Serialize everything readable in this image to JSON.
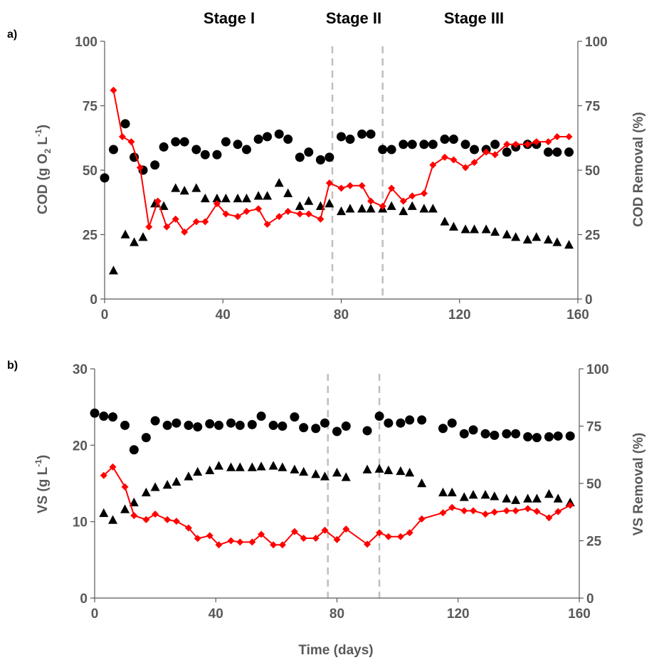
{
  "stages": [
    "Stage I",
    "Stage II",
    "Stage III"
  ],
  "xlabel": "Time (days)",
  "colors": {
    "influent": "#000000",
    "effluent": "#000000",
    "removal": "#ff0000",
    "axis": "#595959",
    "stage_line": "#bfbfbf"
  },
  "chart_data": [
    {
      "panel_label": "a)",
      "type": "scatter",
      "ylabel_prefix": "COD (g O",
      "ylabel_sub": "2",
      "ylabel_mid": " L",
      "ylabel_sup": "-1",
      "ylabel_suffix": ")",
      "y2label": "COD Removal (%)",
      "xlim": [
        0,
        160
      ],
      "ylim": [
        0,
        100
      ],
      "y2lim": [
        0,
        100
      ],
      "x_ticks": [
        "0",
        "40",
        "80",
        "120",
        "160"
      ],
      "y_ticks": [
        "0",
        "25",
        "50",
        "75",
        "100"
      ],
      "y2_ticks": [
        "0",
        "25",
        "50",
        "75",
        "100"
      ],
      "stage_boundaries": [
        77,
        94
      ],
      "series": [
        {
          "marker": "circle",
          "axis": "left",
          "x": [
            0,
            3,
            7,
            10,
            13,
            17,
            20,
            24,
            27,
            31,
            34,
            38,
            41,
            45,
            48,
            52,
            55,
            59,
            62,
            66,
            69,
            73,
            76,
            80,
            83,
            87,
            90,
            94,
            97,
            101,
            104,
            108,
            111,
            115,
            118,
            122,
            125,
            129,
            132,
            136,
            139,
            143,
            146,
            150,
            153,
            157
          ],
          "y": [
            47,
            58,
            68,
            55,
            50,
            52,
            59,
            61,
            61,
            58,
            56,
            56,
            61,
            60,
            58,
            62,
            63,
            64,
            62,
            55,
            57,
            54,
            55,
            63,
            62,
            64,
            64,
            58,
            58,
            60,
            60,
            60,
            60,
            62,
            62,
            60,
            58,
            58,
            60,
            57,
            59,
            60,
            60,
            57,
            57,
            57
          ]
        },
        {
          "marker": "triangle",
          "axis": "left",
          "x": [
            3,
            7,
            10,
            13,
            17,
            20,
            24,
            27,
            31,
            34,
            38,
            41,
            45,
            48,
            52,
            55,
            59,
            62,
            66,
            69,
            73,
            76,
            80,
            83,
            87,
            90,
            94,
            97,
            101,
            104,
            108,
            111,
            115,
            118,
            122,
            125,
            129,
            132,
            136,
            139,
            143,
            146,
            150,
            153,
            157
          ],
          "y": [
            11,
            25,
            22,
            24,
            37,
            36,
            43,
            42,
            43,
            39,
            39,
            39,
            39,
            39,
            40,
            40,
            45,
            41,
            36,
            38,
            36,
            37,
            34,
            35,
            35,
            35,
            35,
            36,
            34,
            36,
            35,
            35,
            30,
            28,
            27,
            27,
            27,
            26,
            25,
            24,
            23,
            24,
            23,
            22,
            21
          ]
        },
        {
          "marker": "diamond",
          "axis": "right",
          "x": [
            3,
            6,
            9,
            12,
            15,
            18,
            21,
            24,
            27,
            31,
            34,
            38,
            41,
            45,
            48,
            52,
            55,
            59,
            62,
            66,
            69,
            73,
            76,
            80,
            83,
            87,
            90,
            94,
            97,
            101,
            104,
            108,
            111,
            115,
            118,
            122,
            125,
            129,
            132,
            136,
            139,
            143,
            146,
            150,
            153,
            157
          ],
          "y": [
            81,
            63,
            61,
            51,
            28,
            38,
            28,
            31,
            26,
            30,
            30,
            37,
            33,
            32,
            34,
            35,
            29,
            32,
            34,
            33,
            33,
            31,
            45,
            43,
            44,
            44,
            38,
            36,
            43,
            38,
            40,
            41,
            52,
            55,
            54,
            51,
            53,
            57,
            56,
            60,
            60,
            60,
            61,
            61,
            63,
            63
          ]
        }
      ]
    },
    {
      "panel_label": "b)",
      "type": "scatter",
      "ylabel_prefix": "VS  (g L",
      "ylabel_sub": "",
      "ylabel_mid": "",
      "ylabel_sup": "-1",
      "ylabel_suffix": ")",
      "y2label": "VS Removal (%)",
      "xlim": [
        0,
        160
      ],
      "ylim": [
        0,
        30
      ],
      "y2lim": [
        0,
        100
      ],
      "x_ticks": [
        "0",
        "40",
        "80",
        "120",
        "160"
      ],
      "y_ticks": [
        "0",
        "10",
        "20",
        "30"
      ],
      "y2_ticks": [
        "0",
        "25",
        "50",
        "75",
        "100"
      ],
      "stage_boundaries": [
        77,
        94
      ],
      "series": [
        {
          "marker": "circle",
          "axis": "left",
          "x": [
            0,
            3,
            6,
            10,
            13,
            17,
            20,
            24,
            27,
            31,
            34,
            38,
            41,
            45,
            48,
            52,
            55,
            59,
            62,
            66,
            69,
            73,
            76,
            80,
            83,
            90,
            94,
            97,
            101,
            104,
            108,
            115,
            118,
            122,
            125,
            129,
            132,
            136,
            139,
            143,
            146,
            150,
            153,
            157
          ],
          "y": [
            24.2,
            23.8,
            23.7,
            22.6,
            19.4,
            21.0,
            23.2,
            22.6,
            22.9,
            22.6,
            22.4,
            22.8,
            22.6,
            22.9,
            22.6,
            22.7,
            23.8,
            22.6,
            22.5,
            23.7,
            22.3,
            22.2,
            22.9,
            21.8,
            22.5,
            21.9,
            23.8,
            22.9,
            22.9,
            23.3,
            23.3,
            22.2,
            22.9,
            21.5,
            22.0,
            21.5,
            21.3,
            21.5,
            21.5,
            21.1,
            21.0,
            21.1,
            21.2,
            21.2
          ]
        },
        {
          "marker": "triangle",
          "axis": "left",
          "x": [
            3,
            6,
            10,
            13,
            17,
            20,
            24,
            27,
            31,
            34,
            38,
            41,
            45,
            48,
            52,
            55,
            59,
            62,
            66,
            69,
            73,
            76,
            80,
            83,
            90,
            94,
            97,
            101,
            104,
            108,
            115,
            118,
            122,
            125,
            129,
            132,
            136,
            139,
            143,
            146,
            150,
            153,
            157
          ],
          "y": [
            11.1,
            10.2,
            11.6,
            12.5,
            13.8,
            14.5,
            14.8,
            15.2,
            15.9,
            16.5,
            16.7,
            17.3,
            17.1,
            17.1,
            17.1,
            17.2,
            17.3,
            17.1,
            16.8,
            16.5,
            16.2,
            15.9,
            16.4,
            15.8,
            16.8,
            16.9,
            16.7,
            16.6,
            16.4,
            15.0,
            13.8,
            13.8,
            13.2,
            13.5,
            13.5,
            13.3,
            13.0,
            12.8,
            13.0,
            13.0,
            13.6,
            13.0,
            12.5
          ]
        },
        {
          "marker": "diamond",
          "axis": "right",
          "x": [
            3,
            6,
            10,
            13,
            17,
            20,
            24,
            27,
            31,
            34,
            38,
            41,
            45,
            48,
            52,
            55,
            59,
            62,
            66,
            69,
            73,
            76,
            80,
            83,
            90,
            94,
            97,
            101,
            104,
            108,
            115,
            118,
            122,
            125,
            129,
            132,
            136,
            139,
            143,
            146,
            150,
            153,
            157
          ],
          "y": [
            53.5,
            57.2,
            48.5,
            36.0,
            34.2,
            36.6,
            34.2,
            33.5,
            30.6,
            26.0,
            27.2,
            23.2,
            25.0,
            24.4,
            24.4,
            27.8,
            23.2,
            23.2,
            29.0,
            26.1,
            26.1,
            29.6,
            25.5,
            30.1,
            23.5,
            28.5,
            26.8,
            26.8,
            28.5,
            34.5,
            37.2,
            39.5,
            38.1,
            38.1,
            36.6,
            37.5,
            38.1,
            38.1,
            39.0,
            37.8,
            35.0,
            37.7,
            40.5
          ]
        }
      ]
    }
  ]
}
